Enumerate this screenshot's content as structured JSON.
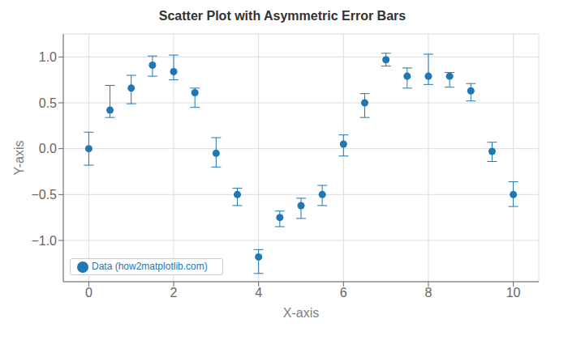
{
  "chart_data": {
    "type": "scatter",
    "title": "Scatter Plot with Asymmetric Error Bars",
    "x_label": "X-axis",
    "y_label": "Y-axis",
    "x": [
      0,
      0.5,
      1.0,
      1.5,
      2.0,
      2.5,
      3.0,
      3.5,
      4.0,
      4.5,
      5.0,
      5.5,
      6.0,
      6.5,
      7.0,
      7.5,
      8.0,
      8.5,
      9.0,
      9.5,
      10.0
    ],
    "series": [
      {
        "name": "Data (how2matplotlib.com)",
        "color": "#1f77b4",
        "marker": "circle",
        "values": [
          0.0,
          0.42,
          0.66,
          0.91,
          0.84,
          0.61,
          -0.05,
          -0.5,
          -1.18,
          -0.75,
          -0.62,
          -0.5,
          0.05,
          0.5,
          0.97,
          0.79,
          0.79,
          0.79,
          0.63,
          -0.03,
          -0.5
        ],
        "error_low": [
          0.18,
          0.08,
          0.17,
          0.12,
          0.09,
          0.16,
          0.15,
          0.12,
          0.18,
          0.1,
          0.14,
          0.12,
          0.13,
          0.16,
          0.07,
          0.13,
          0.09,
          0.12,
          0.11,
          0.11,
          0.13
        ],
        "error_high": [
          0.18,
          0.27,
          0.14,
          0.1,
          0.18,
          0.05,
          0.17,
          0.07,
          0.08,
          0.07,
          0.08,
          0.1,
          0.1,
          0.1,
          0.07,
          0.09,
          0.24,
          0.04,
          0.08,
          0.1,
          0.14
        ]
      }
    ],
    "xlim": [
      -0.6,
      10.6
    ],
    "ylim": [
      -1.45,
      1.25
    ],
    "xticks": [
      0,
      2,
      4,
      6,
      8,
      10
    ],
    "yticks": [
      {
        "value": -1.0,
        "label": "−1.0"
      },
      {
        "value": -0.5,
        "label": "−0.5"
      },
      {
        "value": 0.0,
        "label": "0.0"
      },
      {
        "value": 0.5,
        "label": "0.5"
      },
      {
        "value": 1.0,
        "label": "1.0"
      }
    ],
    "grid": true,
    "legend": "lower left"
  }
}
